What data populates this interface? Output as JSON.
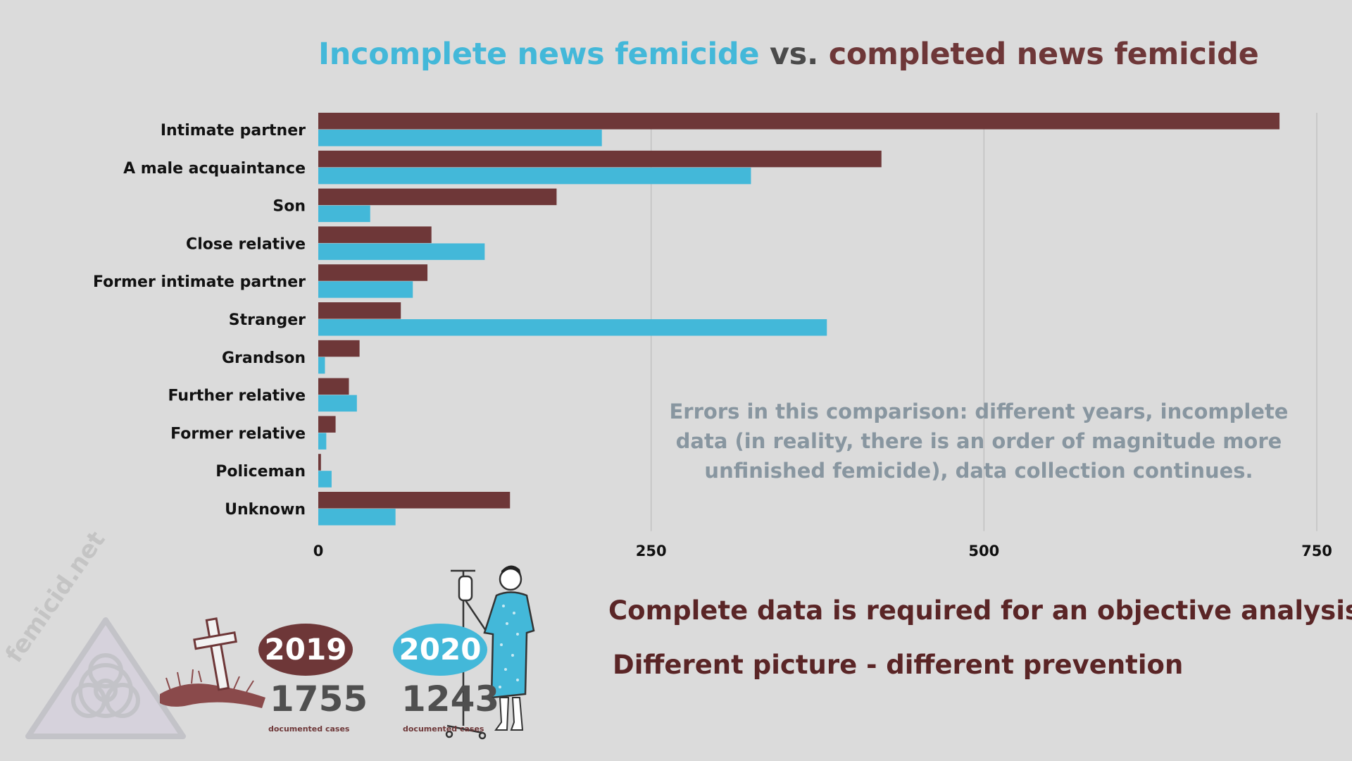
{
  "title": {
    "incomplete": "Incomplete news femicide",
    "vs": " vs. ",
    "completed": "completed news femicide"
  },
  "colors": {
    "completed": "#6e3738",
    "incomplete": "#43b8d9",
    "note": "#8896a0",
    "message": "#5a2526"
  },
  "chart_data": {
    "type": "bar",
    "orientation": "horizontal",
    "categories": [
      "Intimate partner",
      "A male acquaintance",
      "Son",
      "Close relative",
      "Former intimate partner",
      "Stranger",
      "Grandson",
      "Further relative",
      "Former relative",
      "Policeman",
      "Unknown"
    ],
    "series": [
      {
        "name": "completed news femicide",
        "color": "#6e3738",
        "values": [
          722,
          423,
          179,
          85,
          82,
          62,
          31,
          23,
          13,
          2,
          144
        ]
      },
      {
        "name": "Incomplete news femicide",
        "color": "#43b8d9",
        "values": [
          213,
          325,
          39,
          125,
          71,
          382,
          5,
          29,
          6,
          10,
          58
        ]
      }
    ],
    "xlim": [
      0,
      750
    ],
    "xticks": [
      "0",
      "250",
      "500",
      "750"
    ],
    "grid": true
  },
  "note": "Errors in this comparison: different years, incomplete data (in reality, there is an order of magnitude more unfinished femicide), data collection continues.",
  "messages": {
    "line1": "Complete data is required for an objective analysis",
    "line2": "Different picture - different prevention"
  },
  "logo": {
    "text": "femicid.net",
    "icon": "biohazard-warning-icon"
  },
  "stats": [
    {
      "year": "2019",
      "count": "1755",
      "caption": "documented cases",
      "icon": "grave-cross-icon"
    },
    {
      "year": "2020",
      "count": "1243",
      "caption": "documented cases",
      "icon": "hospital-patient-icon"
    }
  ]
}
